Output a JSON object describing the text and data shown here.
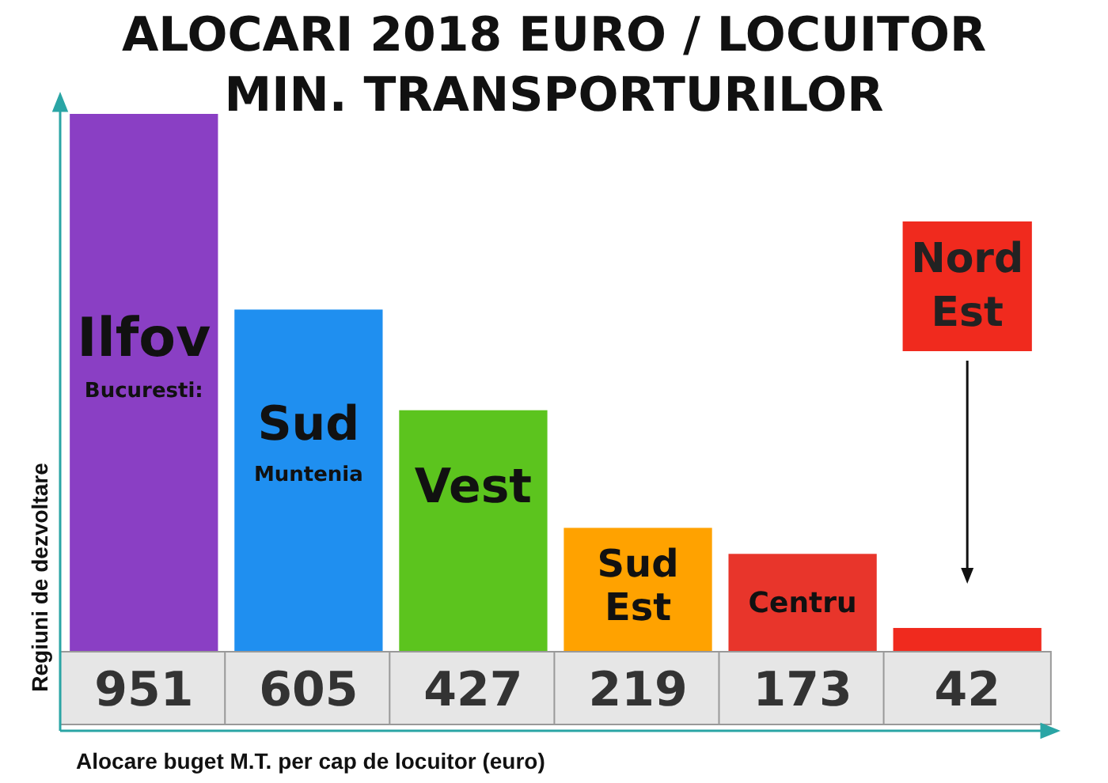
{
  "chart_data": {
    "type": "bar",
    "title": "ALOCARI 2018 EURO /  LOCUITOR\nMIN. TRANSPORTURILOR",
    "xlabel": "Alocare buget M.T. per cap de locuitor (euro)",
    "ylabel": "Regiuni de dezvoltare",
    "categories": [
      "Ilfov",
      "Sud",
      "Vest",
      "Sud Est",
      "Centru",
      "Nord Est"
    ],
    "values": [
      951,
      605,
      427,
      219,
      173,
      42
    ],
    "colors": [
      "#8a3fc4",
      "#1f8ff0",
      "#5cc41e",
      "#ffa200",
      "#e8352b",
      "#f02a1e"
    ],
    "data_labels": true,
    "annotations": [
      "Bucuresti:",
      "Muntenia"
    ]
  }
}
